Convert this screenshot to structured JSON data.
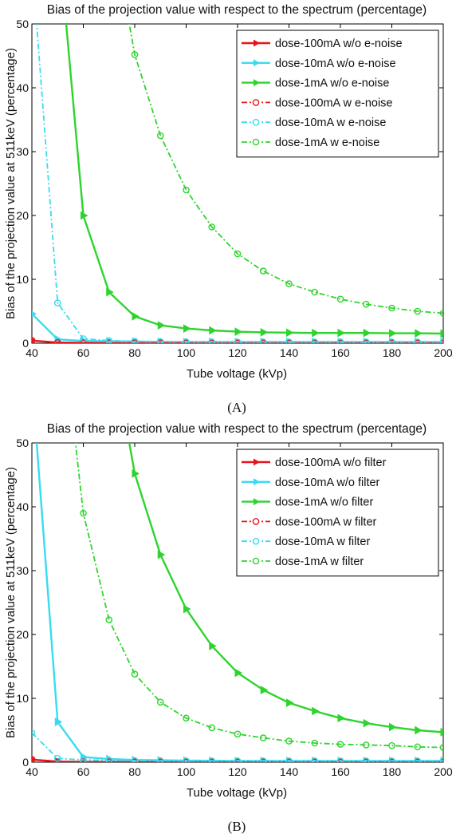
{
  "chart_data": [
    {
      "type": "line",
      "panel_label": "(A)",
      "title": "Bias of the projection value with respect to the spectrum (percentage)",
      "xlabel": "Tube voltage (kVp)",
      "ylabel": "Bias of the projection value at 511keV (percentage)",
      "xlim": [
        40,
        200
      ],
      "ylim": [
        0,
        50
      ],
      "xticks": [
        40,
        60,
        80,
        100,
        120,
        140,
        160,
        180,
        200
      ],
      "yticks": [
        0,
        10,
        20,
        30,
        40,
        50
      ],
      "grid": false,
      "legend_position": "top-right",
      "series": [
        {
          "name": "dose-100mA w/o e-noise",
          "color": "#e8141c",
          "style": "solid",
          "marker": "triangle",
          "x": [
            40,
            50,
            60,
            70,
            80,
            90,
            100,
            110,
            120,
            130,
            140,
            150,
            160,
            170,
            180,
            190,
            200
          ],
          "y": [
            0.4,
            0.1,
            0.05,
            0.05,
            0.05,
            0.05,
            0.05,
            0.05,
            0.05,
            0.05,
            0.05,
            0.05,
            0.05,
            0.05,
            0.05,
            0.05,
            0.05
          ]
        },
        {
          "name": "dose-10mA w/o e-noise",
          "color": "#38dcf0",
          "style": "solid",
          "marker": "triangle",
          "x": [
            40,
            50,
            60,
            70,
            80,
            90,
            100,
            110,
            120,
            130,
            140,
            150,
            160,
            170,
            180,
            190,
            200
          ],
          "y": [
            4.6,
            0.6,
            0.35,
            0.3,
            0.25,
            0.22,
            0.2,
            0.2,
            0.2,
            0.2,
            0.2,
            0.2,
            0.2,
            0.2,
            0.2,
            0.2,
            0.2
          ]
        },
        {
          "name": "dose-1mA w/o e-noise",
          "color": "#2ed42e",
          "style": "solid",
          "marker": "triangle",
          "x": [
            50,
            60,
            70,
            80,
            90,
            100,
            110,
            120,
            130,
            140,
            150,
            160,
            170,
            180,
            190,
            200
          ],
          "y": [
            65,
            20,
            8,
            4.2,
            2.8,
            2.3,
            2.0,
            1.8,
            1.7,
            1.65,
            1.6,
            1.6,
            1.6,
            1.55,
            1.55,
            1.5
          ]
        },
        {
          "name": "dose-100mA w e-noise",
          "color": "#e8141c",
          "style": "dashdot",
          "marker": "circle",
          "x": [
            40,
            50,
            60,
            70,
            80,
            90,
            100,
            110,
            120,
            130,
            140,
            150,
            160,
            170,
            180,
            190,
            200
          ],
          "y": [
            0.45,
            0.1,
            0.05,
            0.05,
            0.05,
            0.05,
            0.05,
            0.05,
            0.05,
            0.05,
            0.05,
            0.05,
            0.05,
            0.05,
            0.05,
            0.05,
            0.05
          ]
        },
        {
          "name": "dose-10mA w e-noise",
          "color": "#38dcf0",
          "style": "dashdot",
          "marker": "circle",
          "x": [
            40,
            50,
            60,
            70,
            80,
            90,
            100,
            110,
            120,
            130,
            140,
            150,
            160,
            170,
            180,
            190,
            200
          ],
          "y": [
            60,
            6.3,
            0.7,
            0.4,
            0.3,
            0.25,
            0.22,
            0.2,
            0.2,
            0.2,
            0.2,
            0.2,
            0.2,
            0.2,
            0.2,
            0.2,
            0.2
          ]
        },
        {
          "name": "dose-1mA w e-noise",
          "color": "#2ed42e",
          "style": "dashdot",
          "marker": "circle",
          "x": [
            70,
            80,
            90,
            100,
            110,
            120,
            130,
            140,
            150,
            160,
            170,
            180,
            190,
            200
          ],
          "y": [
            68,
            45.2,
            32.5,
            24,
            18.2,
            14,
            11.3,
            9.3,
            8,
            6.9,
            6.1,
            5.5,
            5.0,
            4.7
          ]
        }
      ]
    },
    {
      "type": "line",
      "panel_label": "(B)",
      "title": "Bias of the projection value with respect to the spectrum (percentage)",
      "xlabel": "Tube voltage (kVp)",
      "ylabel": "Bias of the projection value at 511keV (percentage)",
      "xlim": [
        40,
        200
      ],
      "ylim": [
        0,
        50
      ],
      "xticks": [
        40,
        60,
        80,
        100,
        120,
        140,
        160,
        180,
        200
      ],
      "yticks": [
        0,
        10,
        20,
        30,
        40,
        50
      ],
      "grid": false,
      "legend_position": "top-right",
      "series": [
        {
          "name": "dose-100mA w/o filter",
          "color": "#e8141c",
          "style": "solid",
          "marker": "triangle",
          "x": [
            40,
            50,
            60,
            70,
            80,
            90,
            100,
            110,
            120,
            130,
            140,
            150,
            160,
            170,
            180,
            190,
            200
          ],
          "y": [
            0.4,
            0.1,
            0.05,
            0.05,
            0.05,
            0.05,
            0.05,
            0.05,
            0.05,
            0.05,
            0.05,
            0.05,
            0.05,
            0.05,
            0.05,
            0.05,
            0.05
          ]
        },
        {
          "name": "dose-10mA w/o filter",
          "color": "#38dcf0",
          "style": "solid",
          "marker": "triangle",
          "x": [
            40,
            50,
            60,
            70,
            80,
            90,
            100,
            110,
            120,
            130,
            140,
            150,
            160,
            170,
            180,
            190,
            200
          ],
          "y": [
            60,
            6.3,
            0.8,
            0.5,
            0.35,
            0.3,
            0.25,
            0.22,
            0.2,
            0.2,
            0.2,
            0.2,
            0.2,
            0.2,
            0.2,
            0.2,
            0.2
          ]
        },
        {
          "name": "dose-1mA w/o filter",
          "color": "#2ed42e",
          "style": "solid",
          "marker": "triangle",
          "x": [
            70,
            80,
            90,
            100,
            110,
            120,
            130,
            140,
            150,
            160,
            170,
            180,
            190,
            200
          ],
          "y": [
            68,
            45.2,
            32.5,
            24,
            18.2,
            14,
            11.3,
            9.3,
            8,
            6.9,
            6.1,
            5.5,
            5.0,
            4.7
          ]
        },
        {
          "name": "dose-100mA w filter",
          "color": "#e8141c",
          "style": "dashdot",
          "marker": "circle",
          "x": [
            40,
            50,
            60,
            70,
            80,
            90,
            100,
            110,
            120,
            130,
            140,
            150,
            160,
            170,
            180,
            190,
            200
          ],
          "y": [
            0.45,
            0.1,
            0.05,
            0.05,
            0.05,
            0.05,
            0.05,
            0.05,
            0.05,
            0.05,
            0.05,
            0.05,
            0.05,
            0.05,
            0.05,
            0.05,
            0.05
          ]
        },
        {
          "name": "dose-10mA w filter",
          "color": "#38dcf0",
          "style": "dashdot",
          "marker": "circle",
          "x": [
            40,
            50,
            60,
            70,
            80,
            90,
            100,
            110,
            120,
            130,
            140,
            150,
            160,
            170,
            180,
            190,
            200
          ],
          "y": [
            4.6,
            0.6,
            0.35,
            0.3,
            0.25,
            0.22,
            0.2,
            0.2,
            0.2,
            0.2,
            0.2,
            0.2,
            0.2,
            0.2,
            0.2,
            0.2,
            0.2
          ]
        },
        {
          "name": "dose-1mA w filter",
          "color": "#2ed42e",
          "style": "dashdot",
          "marker": "circle",
          "x": [
            50,
            60,
            70,
            80,
            90,
            100,
            110,
            120,
            130,
            140,
            150,
            160,
            170,
            180,
            190,
            200
          ],
          "y": [
            75,
            39,
            22.3,
            13.8,
            9.4,
            6.9,
            5.4,
            4.4,
            3.8,
            3.3,
            3.0,
            2.8,
            2.7,
            2.6,
            2.4,
            2.3
          ]
        }
      ]
    }
  ]
}
